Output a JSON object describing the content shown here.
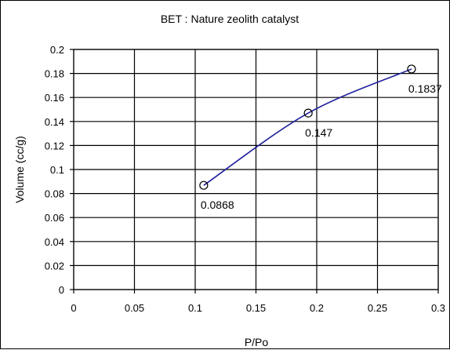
{
  "chart_data": {
    "type": "line",
    "title": "BET : Nature zeolith catalyst",
    "xlabel": "P/Po",
    "ylabel": "Volume (cc/g)",
    "xlim": [
      0,
      0.3
    ],
    "ylim": [
      0,
      0.2
    ],
    "x_ticks": [
      "0",
      "0.05",
      "0.1",
      "0.15",
      "0.2",
      "0.25",
      "0.3"
    ],
    "y_ticks": [
      "0",
      "0.02",
      "0.04",
      "0.06",
      "0.08",
      "0.1",
      "0.12",
      "0.14",
      "0.16",
      "0.18",
      "0.2"
    ],
    "grid": true,
    "legend": "none",
    "series": [
      {
        "x": [
          0.107,
          0.193,
          0.278
        ],
        "y": [
          0.0868,
          0.147,
          0.1837
        ],
        "data_labels": [
          "0.0868",
          "0.147",
          "0.1837"
        ],
        "line_color": "#1f1f9e",
        "marker": "open-circle"
      }
    ]
  }
}
